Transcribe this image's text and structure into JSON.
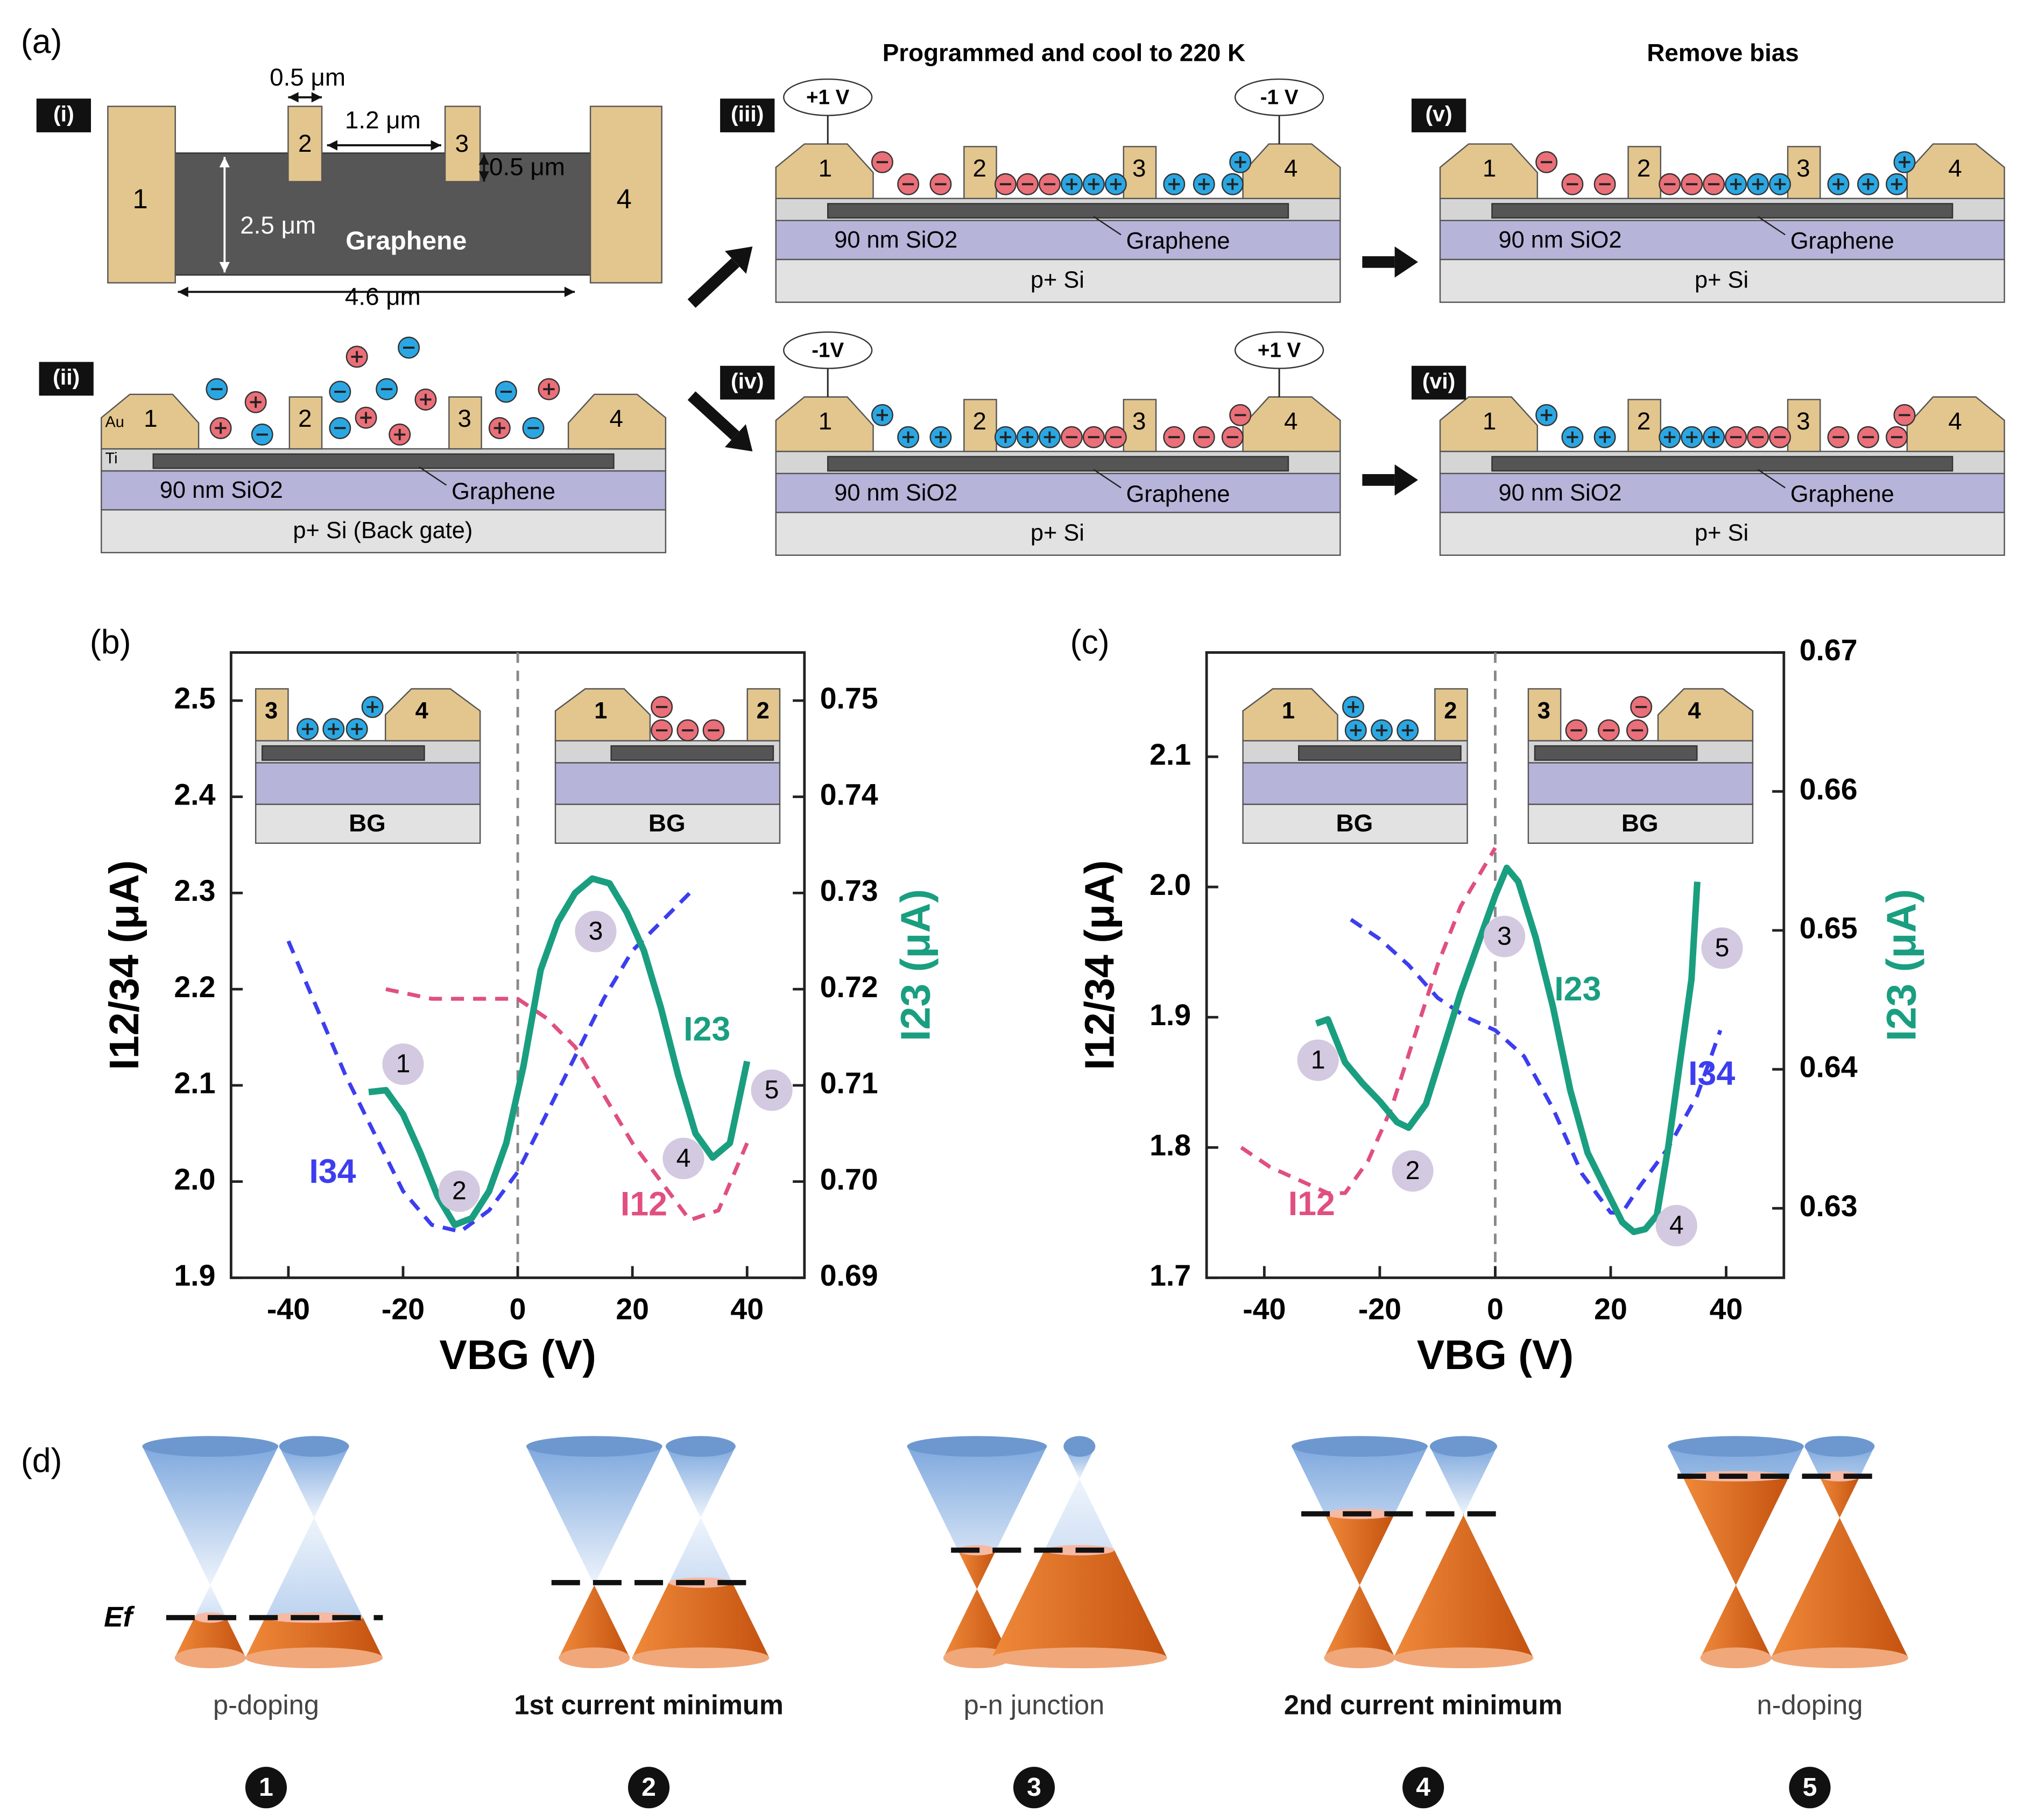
{
  "panel_a": {
    "label": "(a)",
    "top_view": {
      "tag": "(i)",
      "electrodes": [
        "1",
        "2",
        "3",
        "4"
      ],
      "dims": [
        "0.5 μm",
        "1.2 μm",
        "0.5 μm",
        "2.5 μm",
        "4.6 μm"
      ],
      "material": "Graphene"
    },
    "headings": [
      "Programmed and cool to 220 K",
      "Remove bias"
    ],
    "devices": [
      {
        "tag": "(ii)",
        "electrodes": [
          "1",
          "2",
          "3",
          "4"
        ],
        "metals": [
          "Au",
          "Ti"
        ],
        "oxide": "90 nm SiO2",
        "graphene": "Graphene",
        "substrate": "p+ Si (Back gate)"
      },
      {
        "tag": "(iii)",
        "electrodes": [
          "1",
          "2",
          "3",
          "4"
        ],
        "biases": [
          "+1 V",
          "-1 V"
        ],
        "oxide": "90 nm SiO2",
        "graphene": "Graphene",
        "substrate": "p+ Si"
      },
      {
        "tag": "(iv)",
        "electrodes": [
          "1",
          "2",
          "3",
          "4"
        ],
        "biases": [
          "-1V",
          "+1 V"
        ],
        "oxide": "90 nm SiO2",
        "graphene": "Graphene",
        "substrate": "p+ Si"
      },
      {
        "tag": "(v)",
        "electrodes": [
          "1",
          "2",
          "3",
          "4"
        ],
        "oxide": "90 nm SiO2",
        "graphene": "Graphene",
        "substrate": "p+ Si"
      },
      {
        "tag": "(vi)",
        "electrodes": [
          "1",
          "2",
          "3",
          "4"
        ],
        "oxide": "90 nm SiO2",
        "graphene": "Graphene",
        "substrate": "p+ Si"
      }
    ]
  },
  "chart_data": [
    {
      "type": "line",
      "panel": "(b)",
      "xlabel": "VBG (V)",
      "ylabel": "I12/34 (μA)",
      "y2label": "I23 (μA)",
      "xlim": [
        -50,
        50
      ],
      "xticks": [
        -40,
        -20,
        0,
        20,
        40
      ],
      "ylim": [
        1.9,
        2.55
      ],
      "yticks": [
        1.9,
        {
          "value": 2,
          "label": "2.0"
        },
        2.1,
        2.2,
        2.3,
        2.4,
        2.5
      ],
      "y2lim": [
        0.69,
        0.755
      ],
      "y2ticks": [
        0.69,
        {
          "value": 0.7,
          "label": "0.70"
        },
        0.71,
        0.72,
        0.73,
        0.74,
        0.75
      ],
      "reference_line_x": 0,
      "series": [
        {
          "name": "I34",
          "color": "#3d3df0",
          "dashed": true,
          "label_x": -32.3,
          "label_y": 2.008,
          "x": [
            -40,
            -35,
            -30,
            -25,
            -20,
            -15,
            -10,
            -5,
            0,
            5,
            10,
            15,
            20,
            25,
            30
          ],
          "values": [
            2.25,
            2.18,
            2.11,
            2.05,
            1.99,
            1.955,
            1.948,
            1.97,
            2.01,
            2.07,
            2.13,
            2.19,
            2.24,
            2.27,
            2.3
          ]
        },
        {
          "name": "I12",
          "color": "#e0507f",
          "dashed": true,
          "label_x": 22,
          "label_y": 1.974,
          "x": [
            -23,
            -15,
            -10,
            -5,
            0,
            5,
            10,
            15,
            20,
            25,
            30,
            35,
            40
          ],
          "values": [
            2.2,
            2.19,
            2.19,
            2.19,
            2.19,
            2.17,
            2.14,
            2.09,
            2.04,
            2.0,
            1.96,
            1.97,
            2.04
          ]
        },
        {
          "name": "I23",
          "color": "#1a9e80",
          "dashed": false,
          "axis": "y2",
          "label_x": 33,
          "label_y": 0.7156,
          "x": [
            -26,
            -23,
            -20,
            -17,
            -14,
            -11,
            -8,
            -5,
            -2,
            1,
            4,
            7,
            10,
            13,
            16,
            19,
            22,
            25,
            28,
            31,
            34,
            37,
            40
          ],
          "values": [
            0.7093,
            0.7095,
            0.707,
            0.703,
            0.6985,
            0.6955,
            0.6962,
            0.699,
            0.704,
            0.712,
            0.722,
            0.727,
            0.73,
            0.7315,
            0.731,
            0.728,
            0.724,
            0.718,
            0.711,
            0.705,
            0.7025,
            0.704,
            0.7125
          ]
        }
      ],
      "annotations": [
        {
          "text": "1",
          "x": -20,
          "y": 2.122
        },
        {
          "text": "2",
          "x": -10.2,
          "y": 1.99
        },
        {
          "text": "3",
          "x": 13.6,
          "y": 2.26
        },
        {
          "text": "4",
          "x": 28.9,
          "y": 2.024
        },
        {
          "text": "5",
          "x": 44.3,
          "y": 2.095
        }
      ],
      "insets": [
        {
          "electrodes": [
            "3",
            "4"
          ],
          "gate": "BG"
        },
        {
          "electrodes": [
            "1",
            "2"
          ],
          "gate": "BG"
        }
      ]
    },
    {
      "type": "line",
      "panel": "(c)",
      "xlabel": "VBG (V)",
      "ylabel": "I12/34 (μA)",
      "y2label": "I23 (μA)",
      "xlim": [
        -50,
        50
      ],
      "xticks": [
        -40,
        -20,
        0,
        20,
        40
      ],
      "ylim": [
        1.7,
        2.18
      ],
      "yticks": [
        1.7,
        1.8,
        1.9,
        {
          "value": 2,
          "label": "2.0"
        },
        2.1
      ],
      "y2lim": [
        0.625,
        0.67
      ],
      "y2ticks": [
        0.63,
        0.64,
        0.65,
        0.66,
        0.67
      ],
      "reference_line_x": 0,
      "series": [
        {
          "name": "I12",
          "color": "#e0507f",
          "dashed": true,
          "label_x": -31.8,
          "label_y": 1.755,
          "x": [
            -44,
            -39,
            -34,
            -29,
            -26,
            -22,
            -18,
            -14,
            -10,
            -6,
            -2,
            0
          ],
          "values": [
            1.8,
            1.785,
            1.775,
            1.765,
            1.765,
            1.79,
            1.83,
            1.885,
            1.94,
            1.985,
            2.015,
            2.03
          ]
        },
        {
          "name": "I34",
          "color": "#3d3df0",
          "dashed": true,
          "label_x": 37.5,
          "label_y": 1.855,
          "x": [
            -25,
            -20,
            -15,
            -10,
            -5,
            0,
            5,
            10,
            15,
            20,
            22,
            25,
            30,
            35,
            39
          ],
          "values": [
            1.975,
            1.96,
            1.94,
            1.915,
            1.9,
            1.89,
            1.87,
            1.83,
            1.78,
            1.75,
            1.75,
            1.77,
            1.8,
            1.84,
            1.89
          ]
        },
        {
          "name": "I23",
          "color": "#1a9e80",
          "dashed": false,
          "axis": "y2",
          "label_x": 14.3,
          "label_y": 0.6456,
          "x": [
            -31,
            -29,
            -26,
            -23,
            -20,
            -17,
            -15,
            -12,
            -9,
            -6,
            -3,
            0,
            2,
            4,
            7,
            10,
            13,
            16,
            19,
            22,
            24,
            26,
            28,
            30,
            32,
            34,
            35
          ],
          "values": [
            0.6433,
            0.6436,
            0.6405,
            0.639,
            0.6377,
            0.6362,
            0.6358,
            0.6375,
            0.6415,
            0.6455,
            0.649,
            0.6525,
            0.6545,
            0.6535,
            0.6495,
            0.6445,
            0.6385,
            0.634,
            0.6315,
            0.629,
            0.6283,
            0.6285,
            0.6295,
            0.6345,
            0.6405,
            0.6465,
            0.6535
          ]
        }
      ],
      "annotations": [
        {
          "text": "1",
          "x": -30.7,
          "y": 1.867
        },
        {
          "text": "2",
          "x": -14.3,
          "y": 1.782
        },
        {
          "text": "3",
          "x": 1.6,
          "y": 1.962
        },
        {
          "text": "4",
          "x": 31.4,
          "y": 1.74
        },
        {
          "text": "5",
          "x": 39.3,
          "y": 1.953
        }
      ],
      "insets": [
        {
          "electrodes": [
            "1",
            "2"
          ],
          "gate": "BG"
        },
        {
          "electrodes": [
            "3",
            "4"
          ],
          "gate": "BG"
        }
      ]
    }
  ],
  "panel_d": {
    "label": "(d)",
    "fermi": "Ef",
    "states": [
      {
        "caption": "p-doping",
        "number": "1"
      },
      {
        "caption": "1st current minimum",
        "number": "2"
      },
      {
        "caption": "p-n junction",
        "number": "3"
      },
      {
        "caption": "2nd current minimum",
        "number": "4"
      },
      {
        "caption": "n-doping",
        "number": "5"
      }
    ]
  }
}
